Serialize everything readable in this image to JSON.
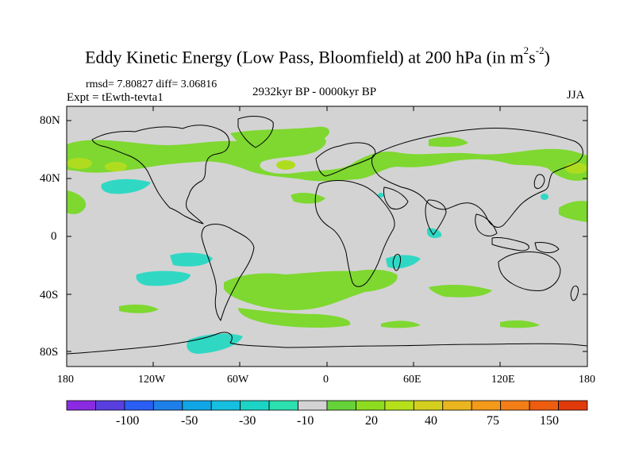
{
  "title_text": "Eddy Kinetic Energy (Low Pass, Bloomfield) at 200 hPa (in m",
  "title_exp1": "2",
  "title_mid": "s",
  "title_exp2": "-2",
  "title_close": ")",
  "stats": "rmsd= 7.80827 diff= 3.06816",
  "experiment": "Expt = tEwth-tevta1",
  "period": "2932kyr BP - 0000kyr BP",
  "season": "JJA",
  "y_axis_labels": [
    "80N",
    "40N",
    "0",
    "40S",
    "80S"
  ],
  "x_axis_labels": [
    "180",
    "120W",
    "60W",
    "0",
    "60E",
    "120E",
    "180"
  ],
  "colorbar_labels": [
    "-100",
    "-50",
    "-30",
    "-10",
    "20",
    "40",
    "75",
    "150"
  ],
  "colorbar_colors": [
    "#8a2be2",
    "#5a3fe0",
    "#2a5ff5",
    "#1e7fe8",
    "#10a6e6",
    "#16bfe0",
    "#1cd4c6",
    "#2ce0b0",
    "#d3d3d3",
    "#66d23a",
    "#8edc20",
    "#b6e01a",
    "#d4cf1e",
    "#eab51e",
    "#f39a1a",
    "#f47e16",
    "#ee5c10",
    "#e03a0a"
  ],
  "colors": {
    "ocean_land_fill": "#d3d3d3",
    "positive_anomaly": "#7ed830",
    "positive_strong": "#b0dc20",
    "negative_anomaly": "#30d8c4"
  }
}
